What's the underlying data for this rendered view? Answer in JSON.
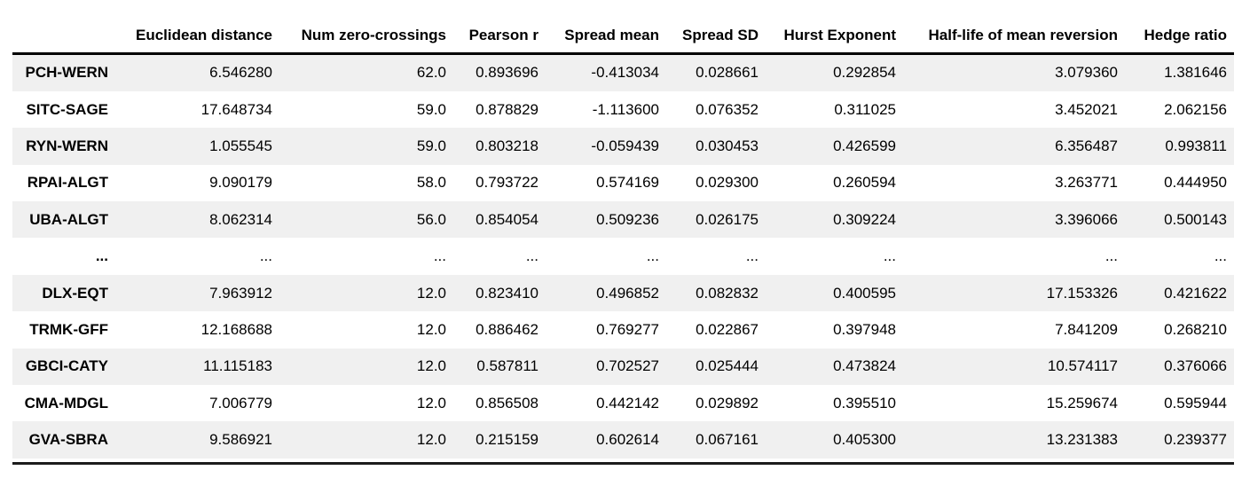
{
  "chart_data": {
    "type": "table",
    "index_label": "",
    "columns": [
      "Euclidean distance",
      "Num zero-crossings",
      "Pearson r",
      "Spread mean",
      "Spread SD",
      "Hurst Exponent",
      "Half-life of mean reversion",
      "Hedge ratio"
    ],
    "rows": [
      {
        "index": "PCH-WERN",
        "values": [
          "6.546280",
          "62.0",
          "0.893696",
          "-0.413034",
          "0.028661",
          "0.292854",
          "3.079360",
          "1.381646"
        ]
      },
      {
        "index": "SITC-SAGE",
        "values": [
          "17.648734",
          "59.0",
          "0.878829",
          "-1.113600",
          "0.076352",
          "0.311025",
          "3.452021",
          "2.062156"
        ]
      },
      {
        "index": "RYN-WERN",
        "values": [
          "1.055545",
          "59.0",
          "0.803218",
          "-0.059439",
          "0.030453",
          "0.426599",
          "6.356487",
          "0.993811"
        ]
      },
      {
        "index": "RPAI-ALGT",
        "values": [
          "9.090179",
          "58.0",
          "0.793722",
          "0.574169",
          "0.029300",
          "0.260594",
          "3.263771",
          "0.444950"
        ]
      },
      {
        "index": "UBA-ALGT",
        "values": [
          "8.062314",
          "56.0",
          "0.854054",
          "0.509236",
          "0.026175",
          "0.309224",
          "3.396066",
          "0.500143"
        ]
      },
      {
        "index": "...",
        "values": [
          "...",
          "...",
          "...",
          "...",
          "...",
          "...",
          "...",
          "..."
        ]
      },
      {
        "index": "DLX-EQT",
        "values": [
          "7.963912",
          "12.0",
          "0.823410",
          "0.496852",
          "0.082832",
          "0.400595",
          "17.153326",
          "0.421622"
        ]
      },
      {
        "index": "TRMK-GFF",
        "values": [
          "12.168688",
          "12.0",
          "0.886462",
          "0.769277",
          "0.022867",
          "0.397948",
          "7.841209",
          "0.268210"
        ]
      },
      {
        "index": "GBCI-CATY",
        "values": [
          "11.115183",
          "12.0",
          "0.587811",
          "0.702527",
          "0.025444",
          "0.473824",
          "10.574117",
          "0.376066"
        ]
      },
      {
        "index": "CMA-MDGL",
        "values": [
          "7.006779",
          "12.0",
          "0.856508",
          "0.442142",
          "0.029892",
          "0.395510",
          "15.259674",
          "0.595944"
        ]
      },
      {
        "index": "GVA-SBRA",
        "values": [
          "9.586921",
          "12.0",
          "0.215159",
          "0.602614",
          "0.067161",
          "0.405300",
          "13.231383",
          "0.239377"
        ]
      }
    ]
  },
  "style": {
    "stripe_color": "#f0f0f0",
    "header_rule_color": "#000000",
    "bottom_rule_color": "#1c1c1c",
    "background_color": "#ffffff",
    "text_color": "#000000"
  }
}
